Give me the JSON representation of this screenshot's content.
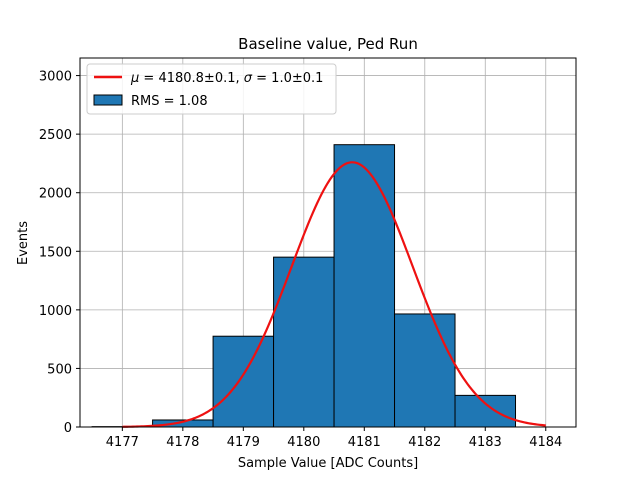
{
  "chart_data": {
    "type": "bar",
    "title": "Baseline value, Ped Run",
    "xlabel": "Sample Value [ADC Counts]",
    "ylabel": "Events",
    "xlim": [
      4176.3,
      4184.5
    ],
    "ylim": [
      0,
      3150
    ],
    "x_ticks": [
      4177,
      4178,
      4179,
      4180,
      4181,
      4182,
      4183,
      4184
    ],
    "y_ticks": [
      0,
      500,
      1000,
      1500,
      2000,
      2500,
      3000
    ],
    "grid": true,
    "legend_position": "top-left",
    "histogram": {
      "name": "RMS = 1.08",
      "color": "#1f77b4",
      "bins": [
        {
          "left": 4176.5,
          "right": 4177.5,
          "value": 3
        },
        {
          "left": 4177.5,
          "right": 4178.5,
          "value": 60
        },
        {
          "left": 4178.5,
          "right": 4179.5,
          "value": 775
        },
        {
          "left": 4179.5,
          "right": 4180.5,
          "value": 1450
        },
        {
          "left": 4180.5,
          "right": 4181.5,
          "value": 2410
        },
        {
          "left": 4181.5,
          "right": 4182.5,
          "value": 965
        },
        {
          "left": 4182.5,
          "right": 4183.5,
          "value": 270
        }
      ]
    },
    "fit": {
      "name": "$\\mu = 4180.8$±0.1, $\\sigma = 1.0$±0.1",
      "mu_label": "μ",
      "mu_text": " = 4180.8±0.1, ",
      "sigma_label": "σ",
      "sigma_text": " = 1.0±0.1",
      "color": "#ee1111",
      "mu": 4180.8,
      "sigma": 1.0,
      "amplitude": 2260,
      "x_range": [
        4177,
        4184
      ]
    }
  }
}
